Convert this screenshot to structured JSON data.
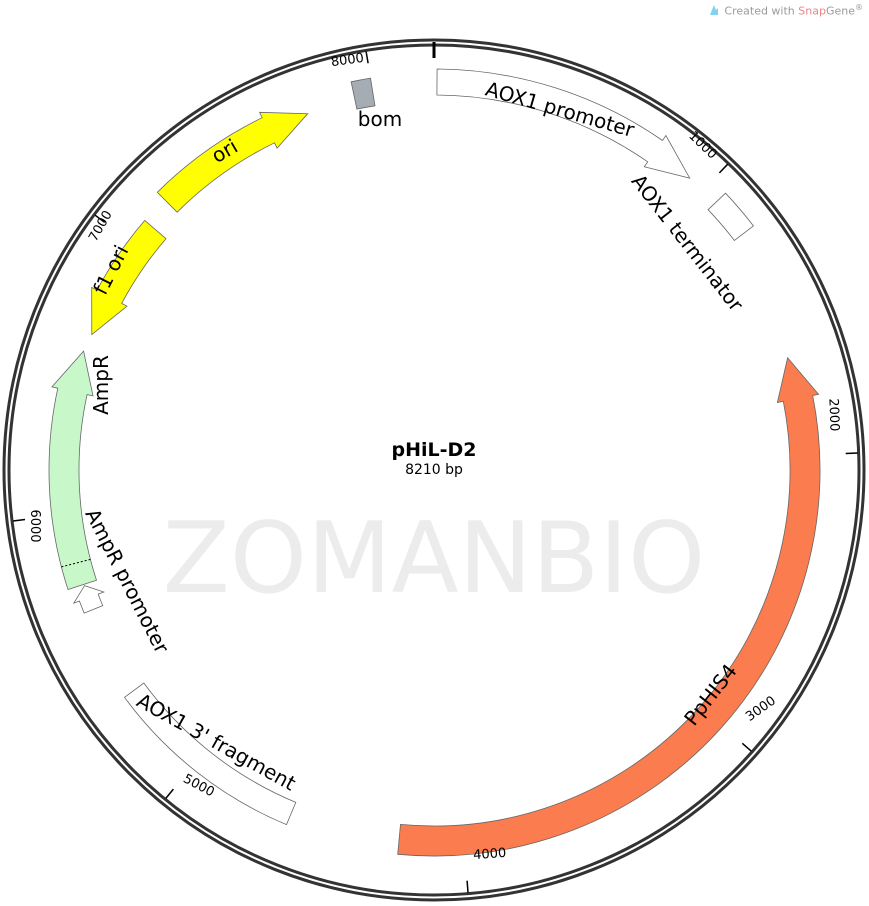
{
  "credit": {
    "prefix": "Created with ",
    "brand_a": "Snap",
    "brand_b": "Gene",
    "mark": "®",
    "icon": "snapgene-logo-icon"
  },
  "watermark": "ZOMANBIO",
  "plasmid": {
    "name": "pHiL-D2",
    "size_label": "8210 bp",
    "length_bp": 8210
  },
  "ticks": [
    {
      "bp": 1000,
      "label": "1000"
    },
    {
      "bp": 2000,
      "label": "2000"
    },
    {
      "bp": 3000,
      "label": "3000"
    },
    {
      "bp": 4000,
      "label": "4000"
    },
    {
      "bp": 5000,
      "label": "5000"
    },
    {
      "bp": 6000,
      "label": "6000"
    },
    {
      "bp": 7000,
      "label": "7000"
    },
    {
      "bp": 8000,
      "label": "8000"
    }
  ],
  "features": [
    {
      "name": "AOX1 promoter",
      "start": 10,
      "end": 940,
      "type": "arrow",
      "direction": "cw",
      "color": "#ffffff"
    },
    {
      "name": "AOX1 terminator",
      "start": 1060,
      "end": 1200,
      "type": "box",
      "color": "#ffffff"
    },
    {
      "name": "PpHIS4",
      "start": 1651,
      "end": 4228,
      "type": "arrow",
      "direction": "ccw",
      "color": "#fb7c4e"
    },
    {
      "name": "AOX1 3' fragment",
      "start": 4620,
      "end": 5330,
      "type": "box",
      "color": "#ffffff"
    },
    {
      "name": "AmpR promoter",
      "start": 5650,
      "end": 5740,
      "type": "arrow",
      "direction": "cw",
      "color": "#ffffff"
    },
    {
      "name": "AmpR",
      "start": 5745,
      "end": 6585,
      "type": "arrow",
      "direction": "cw",
      "color": "#c8f8ca"
    },
    {
      "name": "f1 ori",
      "start": 6650,
      "end": 7088,
      "type": "arrow",
      "direction": "ccw",
      "color": "#ffff00"
    },
    {
      "name": "ori",
      "start": 7186,
      "end": 7765,
      "type": "arrow",
      "direction": "cw",
      "color": "#ffff00"
    },
    {
      "name": "bom",
      "start": 7935,
      "end": 8000,
      "type": "box",
      "color": "#a6acb4"
    }
  ]
}
